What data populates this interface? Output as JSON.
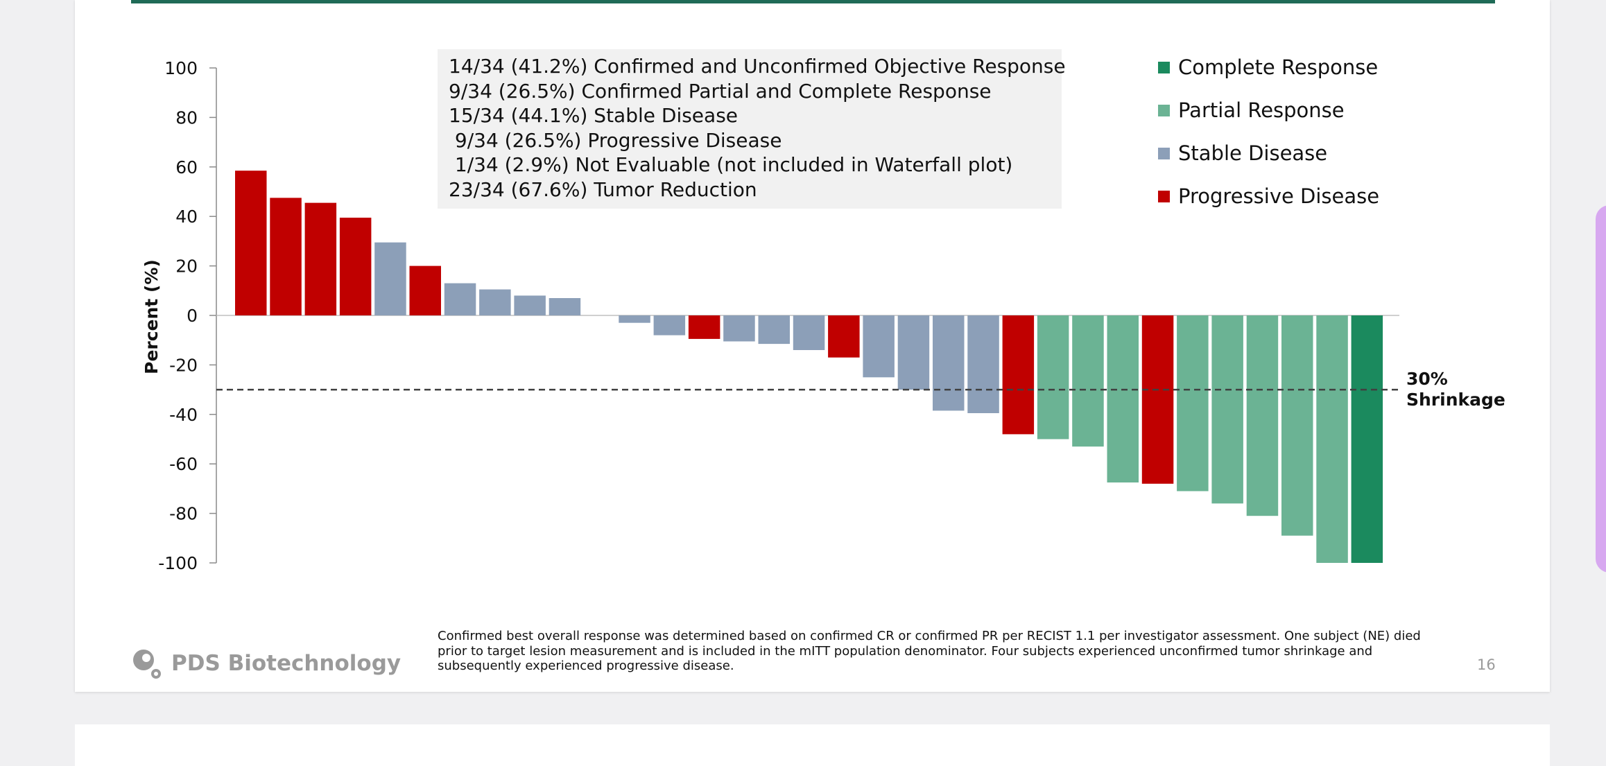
{
  "chart_data": {
    "type": "bar",
    "title": "",
    "xlabel": "",
    "ylabel": "Percent (%)",
    "ylim": [
      -100,
      100
    ],
    "y_ticks": [
      100,
      80,
      60,
      40,
      20,
      0,
      -20,
      -40,
      -60,
      -80,
      -100
    ],
    "reference_line": {
      "value": -30,
      "label_lines": [
        "30%",
        "Shrinkage"
      ],
      "style": "dashed"
    },
    "categories": [
      "Complete Response",
      "Partial Response",
      "Stable Disease",
      "Progressive Disease"
    ],
    "colors": {
      "Complete Response": "#1b8a5e",
      "Partial Response": "#6bb394",
      "Stable Disease": "#8c9fb8",
      "Progressive Disease": "#c00000"
    },
    "bars": [
      {
        "value": 58.5,
        "category": "Progressive Disease"
      },
      {
        "value": 47.5,
        "category": "Progressive Disease"
      },
      {
        "value": 45.5,
        "category": "Progressive Disease"
      },
      {
        "value": 39.5,
        "category": "Progressive Disease"
      },
      {
        "value": 29.5,
        "category": "Stable Disease"
      },
      {
        "value": 20.0,
        "category": "Progressive Disease"
      },
      {
        "value": 13.0,
        "category": "Stable Disease"
      },
      {
        "value": 10.5,
        "category": "Stable Disease"
      },
      {
        "value": 8.0,
        "category": "Stable Disease"
      },
      {
        "value": 7.0,
        "category": "Stable Disease"
      },
      {
        "value": 0.0,
        "category": "Stable Disease"
      },
      {
        "value": -3.0,
        "category": "Stable Disease"
      },
      {
        "value": -8.0,
        "category": "Stable Disease"
      },
      {
        "value": -9.5,
        "category": "Progressive Disease"
      },
      {
        "value": -10.5,
        "category": "Stable Disease"
      },
      {
        "value": -11.5,
        "category": "Stable Disease"
      },
      {
        "value": -14.0,
        "category": "Stable Disease"
      },
      {
        "value": -17.0,
        "category": "Progressive Disease"
      },
      {
        "value": -25.0,
        "category": "Stable Disease"
      },
      {
        "value": -30.0,
        "category": "Stable Disease"
      },
      {
        "value": -38.5,
        "category": "Stable Disease"
      },
      {
        "value": -39.5,
        "category": "Stable Disease"
      },
      {
        "value": -48.0,
        "category": "Progressive Disease"
      },
      {
        "value": -50.0,
        "category": "Partial Response"
      },
      {
        "value": -53.0,
        "category": "Partial Response"
      },
      {
        "value": -67.5,
        "category": "Partial Response"
      },
      {
        "value": -68.0,
        "category": "Progressive Disease"
      },
      {
        "value": -71.0,
        "category": "Partial Response"
      },
      {
        "value": -76.0,
        "category": "Partial Response"
      },
      {
        "value": -81.0,
        "category": "Partial Response"
      },
      {
        "value": -89.0,
        "category": "Partial Response"
      },
      {
        "value": -100.0,
        "category": "Partial Response"
      },
      {
        "value": -100.0,
        "category": "Complete Response"
      }
    ]
  },
  "legend": [
    {
      "label": "Complete Response",
      "color": "#1b8a5e"
    },
    {
      "label": "Partial Response",
      "color": "#6bb394"
    },
    {
      "label": "Stable Disease",
      "color": "#8c9fb8"
    },
    {
      "label": "Progressive Disease",
      "color": "#c00000"
    }
  ],
  "summary_lines": [
    "14/34 (41.2%) Confirmed and Unconfirmed Objective Response",
    "9/34 (26.5%) Confirmed Partial and Complete Response",
    "15/34 (44.1%) Stable Disease",
    " 9/34 (26.5%) Progressive Disease",
    " 1/34 (2.9%) Not Evaluable (not included in Waterfall plot)",
    "23/34 (67.6%) Tumor Reduction"
  ],
  "footnote": "Confirmed best overall response was determined based on confirmed CR or confirmed PR per RECIST 1.1 per investigator assessment. One subject (NE) died prior to target lesion measurement and is included in the mITT population denominator. Four subjects experienced unconfirmed tumor shrinkage and subsequently experienced progressive disease.",
  "logo": {
    "text": "PDS Biotechnology",
    "icon": "pds-logo-icon"
  },
  "page_number": "16",
  "colors": {
    "accent_bar": "#1f6b57",
    "background": "#f0f0f2",
    "side_handle": "#d7a8f0"
  }
}
